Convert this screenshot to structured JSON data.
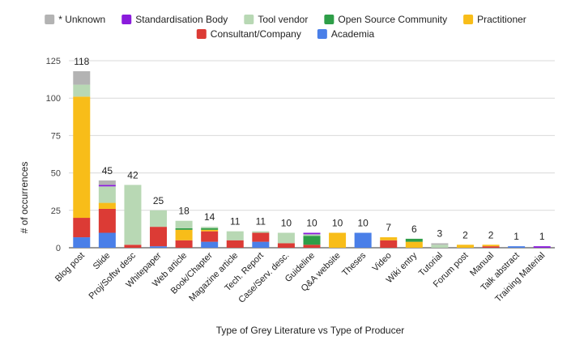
{
  "chart_data": {
    "type": "bar",
    "stacked": true,
    "title": "",
    "xlabel": "Type of Grey Literature vs Type of Producer",
    "ylabel": "# of occurrences",
    "ylim": [
      0,
      125
    ],
    "yticks": [
      0,
      25,
      50,
      75,
      100,
      125
    ],
    "grid": true,
    "legend_position": "top",
    "categories": [
      "Blog post",
      "Slide",
      "Proj/Softw desc",
      "Whitepaper",
      "Web article",
      "Book/Chapter",
      "Magazine article",
      "Tech. Report",
      "Case/Serv. desc.",
      "Guideline",
      "Q&A website",
      "Theses",
      "Video",
      "Wiki entry",
      "Tutorial",
      "Forum post",
      "Manual",
      "Talk abstract",
      "Training Material"
    ],
    "totals": [
      118,
      45,
      42,
      25,
      18,
      14,
      11,
      11,
      10,
      10,
      10,
      10,
      7,
      6,
      3,
      2,
      2,
      1,
      1
    ],
    "series": [
      {
        "name": "Academia",
        "color": "#4a7fe8",
        "values": [
          7,
          10,
          0,
          1,
          0,
          4,
          0,
          4,
          0,
          0,
          0,
          10,
          0,
          0,
          0,
          0,
          0,
          1,
          0
        ]
      },
      {
        "name": "Consultant/Company",
        "color": "#dc3b35",
        "values": [
          13,
          16,
          2,
          13,
          5,
          7,
          5,
          6,
          3,
          2,
          0,
          0,
          5,
          0,
          0,
          0,
          1,
          0,
          0
        ]
      },
      {
        "name": "Practitioner",
        "color": "#f8bd19",
        "values": [
          81,
          4,
          0,
          0,
          7,
          1,
          0,
          0,
          0,
          0,
          10,
          0,
          2,
          4,
          0,
          2,
          1,
          0,
          0
        ]
      },
      {
        "name": "Open Source Community",
        "color": "#2e9e48",
        "values": [
          0,
          0,
          0,
          0,
          1,
          1,
          0,
          0,
          0,
          6,
          0,
          0,
          0,
          2,
          0,
          0,
          0,
          0,
          0
        ]
      },
      {
        "name": "Tool vendor",
        "color": "#b8d8b4",
        "values": [
          8,
          11,
          40,
          11,
          5,
          1,
          6,
          1,
          7,
          1,
          0,
          0,
          0,
          0,
          2,
          0,
          0,
          0,
          0
        ]
      },
      {
        "name": "Standardisation Body",
        "color": "#8a1bdc",
        "values": [
          0,
          1,
          0,
          0,
          0,
          0,
          0,
          0,
          0,
          1,
          0,
          0,
          0,
          0,
          0,
          0,
          0,
          0,
          1
        ]
      },
      {
        "name": "* Unknown",
        "color": "#b3b3b3",
        "values": [
          9,
          3,
          0,
          0,
          0,
          0,
          0,
          0,
          0,
          0,
          0,
          0,
          0,
          0,
          1,
          0,
          0,
          0,
          0
        ]
      }
    ],
    "legend": [
      {
        "name": "* Unknown",
        "color": "#b3b3b3"
      },
      {
        "name": "Standardisation Body",
        "color": "#8a1bdc"
      },
      {
        "name": "Tool vendor",
        "color": "#b8d8b4"
      },
      {
        "name": "Open Source Community",
        "color": "#2e9e48"
      },
      {
        "name": "Practitioner",
        "color": "#f8bd19"
      },
      {
        "name": "Consultant/Company",
        "color": "#dc3b35"
      },
      {
        "name": "Academia",
        "color": "#4a7fe8"
      }
    ]
  }
}
